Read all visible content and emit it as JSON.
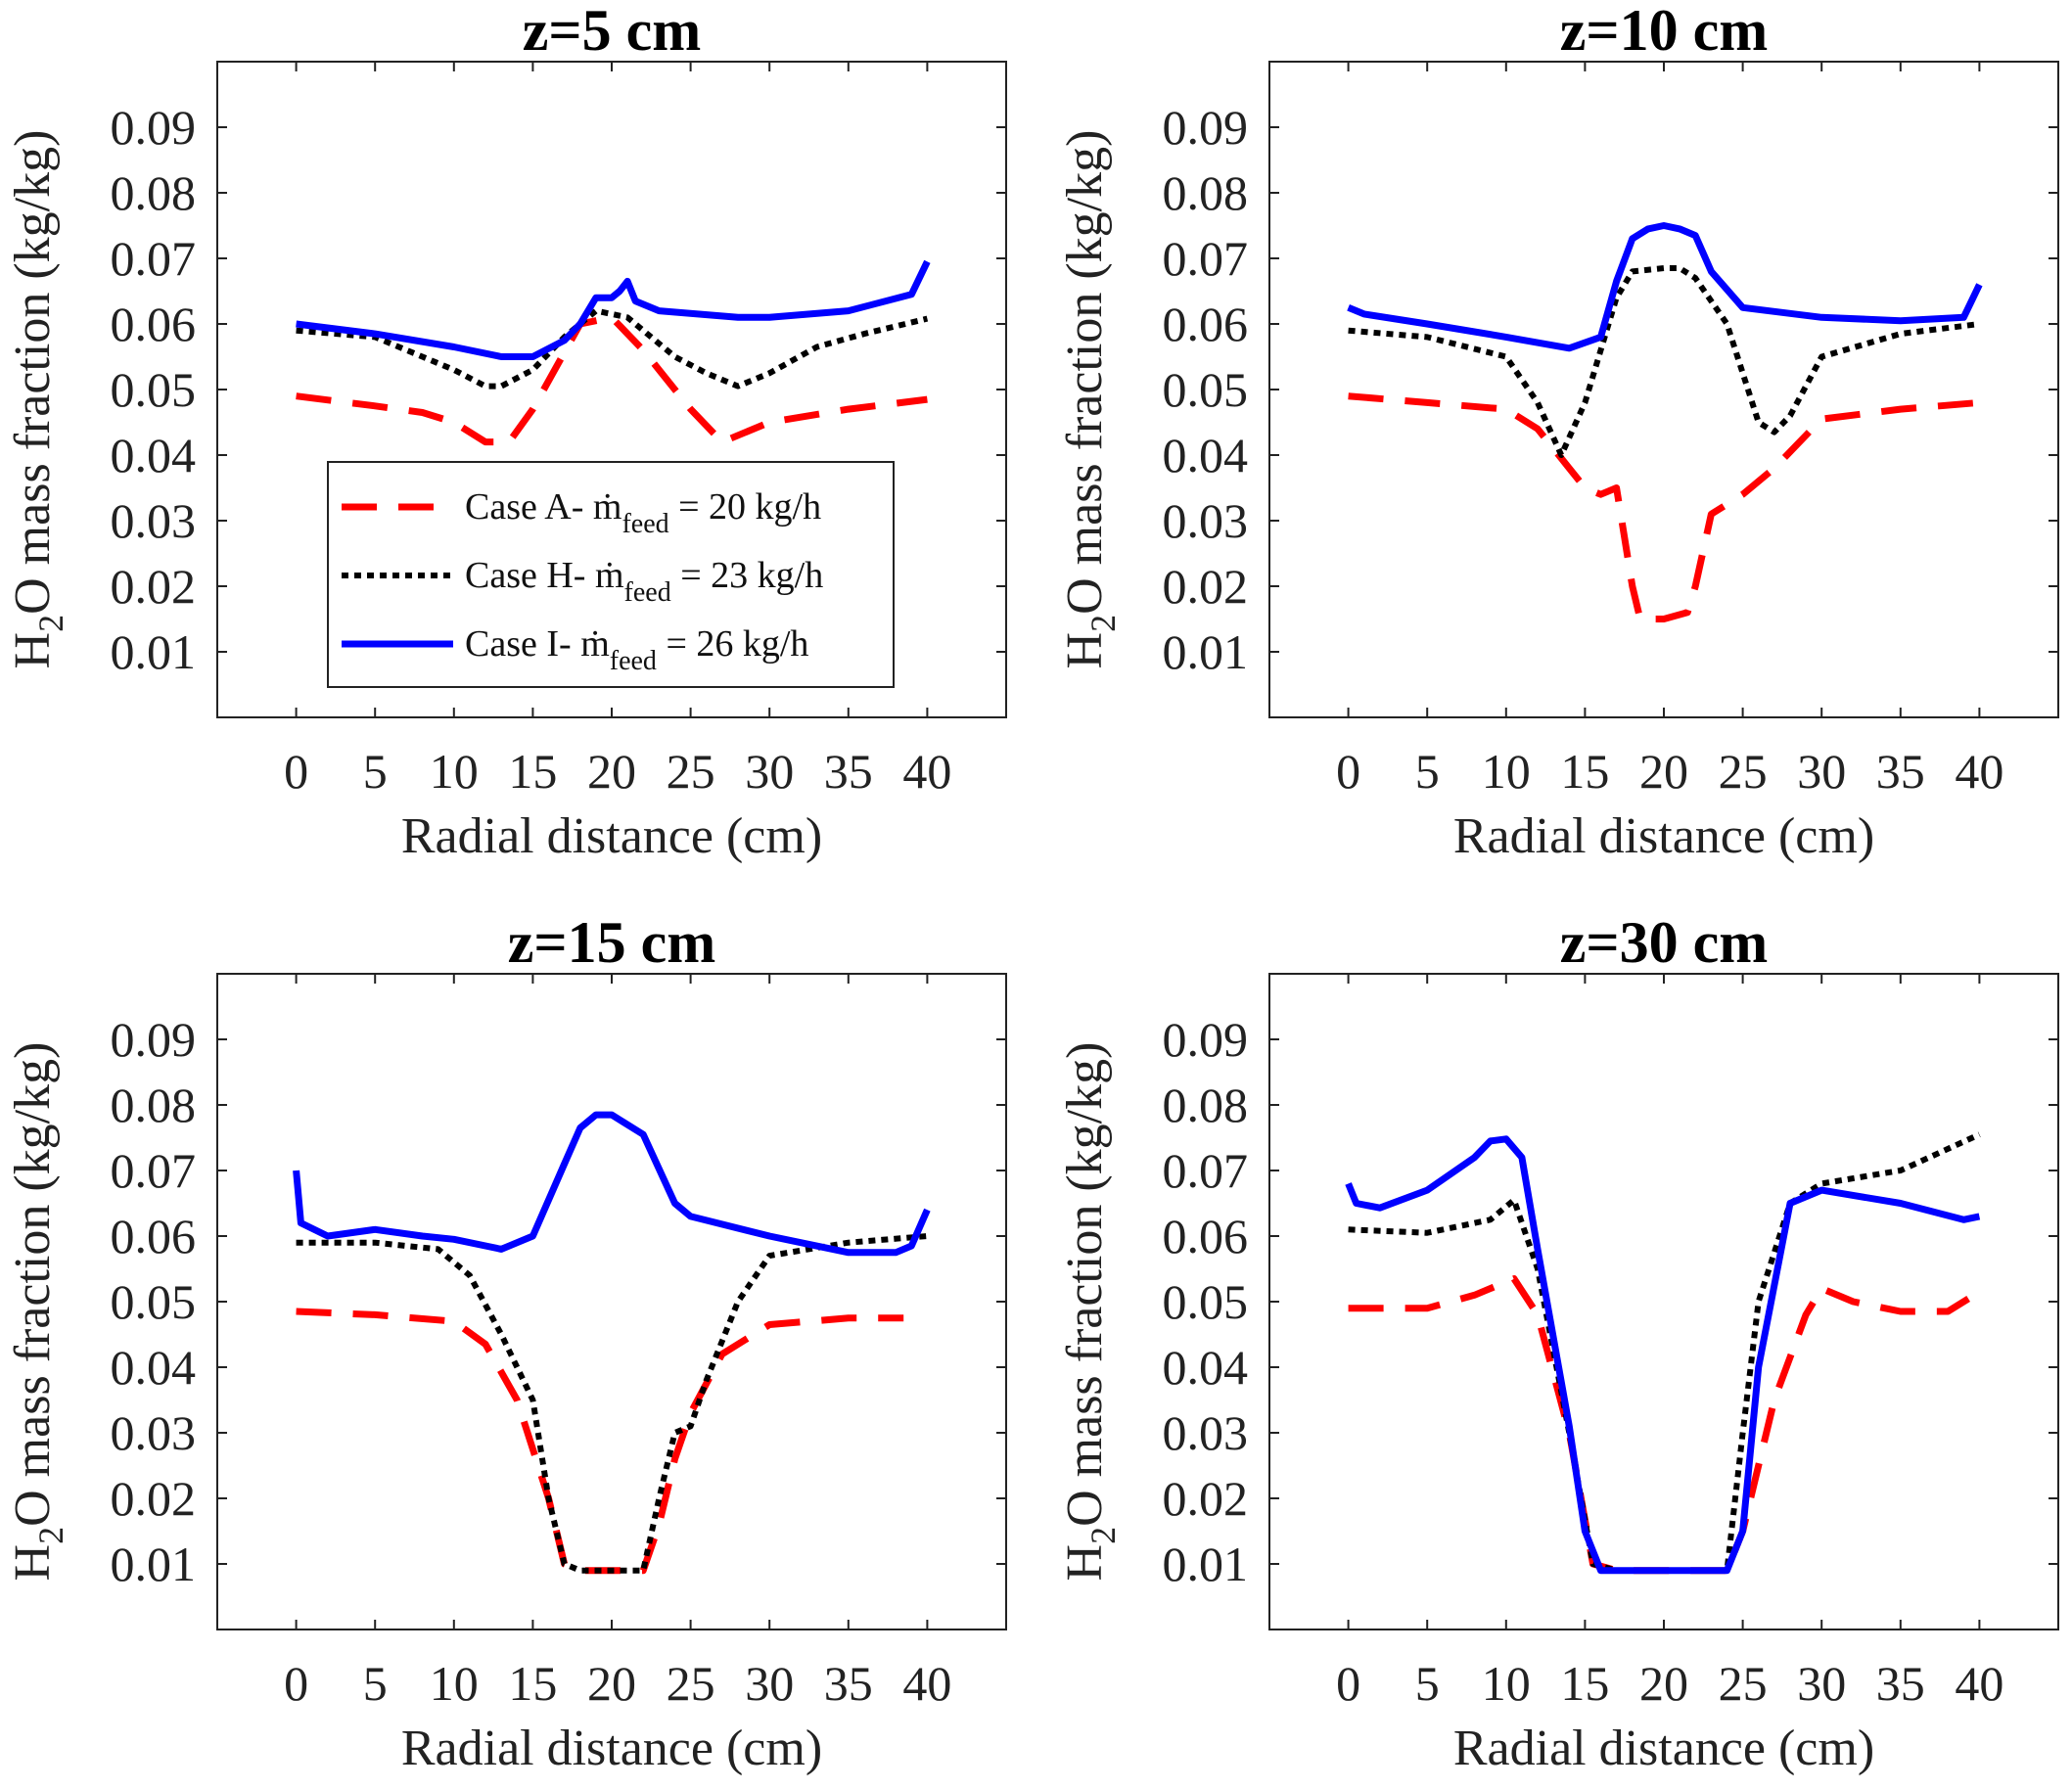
{
  "chart_data": [
    {
      "type": "line",
      "title": "z=5 cm",
      "xlabel": "Radial distance (cm)",
      "ylabel": {
        "pre": "H",
        "sub": "2",
        "post": "O mass fraction (kg/kg)"
      },
      "xlim": [
        -5,
        45
      ],
      "ylim": [
        0,
        0.1
      ],
      "xticks": [
        "0",
        "5",
        "10",
        "15",
        "20",
        "25",
        "30",
        "35",
        "40"
      ],
      "yticks": [
        "0.01",
        "0.02",
        "0.03",
        "0.04",
        "0.05",
        "0.06",
        "0.07",
        "0.08",
        "0.09"
      ],
      "show_legend": true,
      "series": [
        {
          "name": "Case A",
          "x": [
            0,
            5,
            8,
            10,
            12,
            13.5,
            15,
            18,
            20,
            22,
            25,
            27,
            30,
            35,
            40
          ],
          "y": [
            0.049,
            0.0475,
            0.0465,
            0.045,
            0.042,
            0.042,
            0.047,
            0.06,
            0.061,
            0.056,
            0.047,
            0.042,
            0.045,
            0.047,
            0.0485
          ]
        },
        {
          "name": "Case H",
          "x": [
            0,
            5,
            8,
            10,
            12,
            13,
            15,
            17,
            19,
            20,
            21,
            24,
            26,
            28,
            30,
            33,
            36,
            40
          ],
          "y": [
            0.059,
            0.058,
            0.055,
            0.053,
            0.0505,
            0.0505,
            0.053,
            0.058,
            0.062,
            0.0615,
            0.061,
            0.055,
            0.0525,
            0.0505,
            0.0525,
            0.0565,
            0.0585,
            0.0608
          ]
        },
        {
          "name": "Case I",
          "x": [
            0,
            5,
            10,
            13,
            15,
            17,
            18,
            19,
            20,
            20.5,
            21,
            21.5,
            23,
            28,
            30,
            35,
            39,
            40
          ],
          "y": [
            0.06,
            0.0585,
            0.0565,
            0.055,
            0.055,
            0.0575,
            0.06,
            0.064,
            0.064,
            0.065,
            0.0665,
            0.0635,
            0.062,
            0.061,
            0.061,
            0.062,
            0.0645,
            0.0695
          ]
        }
      ]
    },
    {
      "type": "line",
      "title": "z=10 cm",
      "xlabel": "Radial distance (cm)",
      "ylabel": {
        "pre": "H",
        "sub": "2",
        "post": "O mass fraction (kg/kg)"
      },
      "xlim": [
        -5,
        45
      ],
      "ylim": [
        0,
        0.1
      ],
      "xticks": [
        "0",
        "5",
        "10",
        "15",
        "20",
        "25",
        "30",
        "35",
        "40"
      ],
      "yticks": [
        "0.01",
        "0.02",
        "0.03",
        "0.04",
        "0.05",
        "0.06",
        "0.07",
        "0.08",
        "0.09"
      ],
      "show_legend": false,
      "series": [
        {
          "name": "Case A",
          "x": [
            0,
            5,
            10,
            12,
            14,
            15,
            16,
            17,
            18,
            18.5,
            20,
            21.5,
            22,
            23,
            25,
            27,
            30,
            35,
            40
          ],
          "y": [
            0.049,
            0.048,
            0.047,
            0.044,
            0.038,
            0.035,
            0.034,
            0.035,
            0.02,
            0.015,
            0.015,
            0.016,
            0.02,
            0.031,
            0.034,
            0.038,
            0.0455,
            0.047,
            0.048
          ]
        },
        {
          "name": "Case H",
          "x": [
            0,
            5,
            10,
            12,
            13.5,
            15,
            17,
            18,
            20,
            21,
            22,
            24,
            26,
            27,
            28,
            30,
            35,
            40
          ],
          "y": [
            0.059,
            0.058,
            0.055,
            0.048,
            0.04,
            0.048,
            0.064,
            0.068,
            0.0685,
            0.0685,
            0.067,
            0.06,
            0.045,
            0.0435,
            0.046,
            0.055,
            0.0585,
            0.06
          ]
        },
        {
          "name": "Case I",
          "x": [
            0,
            1,
            5,
            10,
            14,
            16,
            17,
            18,
            19,
            20,
            21,
            22,
            23,
            25,
            30,
            35,
            39,
            40
          ],
          "y": [
            0.0625,
            0.0615,
            0.06,
            0.058,
            0.0563,
            0.058,
            0.0665,
            0.073,
            0.0745,
            0.075,
            0.0745,
            0.0735,
            0.068,
            0.0625,
            0.061,
            0.0605,
            0.061,
            0.066
          ]
        }
      ]
    },
    {
      "type": "line",
      "title": "z=15 cm",
      "xlabel": "Radial distance (cm)",
      "ylabel": {
        "pre": "H",
        "sub": "2",
        "post": "O mass fraction (kg/kg)"
      },
      "xlim": [
        -5,
        45
      ],
      "ylim": [
        0,
        0.1
      ],
      "xticks": [
        "0",
        "5",
        "10",
        "15",
        "20",
        "25",
        "30",
        "35",
        "40"
      ],
      "yticks": [
        "0.01",
        "0.02",
        "0.03",
        "0.04",
        "0.05",
        "0.06",
        "0.07",
        "0.08",
        "0.09"
      ],
      "show_legend": false,
      "series": [
        {
          "name": "Case A",
          "x": [
            0,
            5,
            10,
            12,
            14,
            16,
            17,
            18,
            20,
            22,
            23,
            24,
            25,
            27,
            30,
            35,
            38.5
          ],
          "y": [
            0.0485,
            0.048,
            0.047,
            0.0435,
            0.035,
            0.02,
            0.01,
            0.009,
            0.009,
            0.009,
            0.016,
            0.026,
            0.033,
            0.042,
            0.0465,
            0.0475,
            0.0475
          ]
        },
        {
          "name": "Case H",
          "x": [
            0,
            5,
            9,
            11,
            13,
            15,
            16,
            17,
            18,
            20,
            22,
            23,
            24,
            25,
            26,
            28,
            30,
            35,
            40
          ],
          "y": [
            0.059,
            0.059,
            0.058,
            0.054,
            0.045,
            0.035,
            0.02,
            0.01,
            0.009,
            0.009,
            0.009,
            0.02,
            0.03,
            0.031,
            0.038,
            0.05,
            0.057,
            0.059,
            0.06
          ]
        },
        {
          "name": "Case I",
          "x": [
            0,
            0.3,
            2,
            5,
            8,
            10,
            13,
            15,
            17,
            18,
            19,
            20,
            22,
            24,
            25,
            30,
            35,
            38,
            39,
            40
          ],
          "y": [
            0.07,
            0.062,
            0.06,
            0.061,
            0.06,
            0.0595,
            0.058,
            0.06,
            0.071,
            0.0765,
            0.0785,
            0.0785,
            0.0755,
            0.065,
            0.063,
            0.06,
            0.0575,
            0.0575,
            0.0585,
            0.064
          ]
        }
      ]
    },
    {
      "type": "line",
      "title": "z=30 cm",
      "xlabel": "Radial distance (cm)",
      "ylabel": {
        "pre": "H",
        "sub": "2",
        "post": "O mass fraction (kg/kg)"
      },
      "xlim": [
        -5,
        45
      ],
      "ylim": [
        0,
        0.1
      ],
      "xticks": [
        "0",
        "5",
        "10",
        "15",
        "20",
        "25",
        "30",
        "35",
        "40"
      ],
      "yticks": [
        "0.01",
        "0.02",
        "0.03",
        "0.04",
        "0.05",
        "0.06",
        "0.07",
        "0.08",
        "0.09"
      ],
      "show_legend": false,
      "series": [
        {
          "name": "Case A",
          "x": [
            0,
            5,
            8,
            10,
            10.5,
            12,
            14,
            15.5,
            17,
            20,
            24,
            25,
            27,
            29,
            30,
            32,
            35,
            38,
            40
          ],
          "y": [
            0.049,
            0.049,
            0.051,
            0.053,
            0.0535,
            0.048,
            0.03,
            0.01,
            0.009,
            0.009,
            0.009,
            0.015,
            0.035,
            0.048,
            0.052,
            0.05,
            0.0485,
            0.0485,
            0.0515
          ]
        },
        {
          "name": "Case H",
          "x": [
            0,
            5,
            9,
            10.5,
            12,
            14,
            15.5,
            17,
            20,
            24,
            25,
            26,
            28,
            30,
            35,
            40
          ],
          "y": [
            0.061,
            0.0605,
            0.0625,
            0.0655,
            0.055,
            0.03,
            0.01,
            0.009,
            0.009,
            0.009,
            0.03,
            0.05,
            0.065,
            0.068,
            0.07,
            0.0755
          ]
        },
        {
          "name": "Case I",
          "x": [
            0,
            0.5,
            2,
            5,
            8,
            9,
            10,
            11,
            12,
            14,
            15,
            16,
            20,
            24,
            25,
            26,
            28,
            30,
            35,
            39,
            40
          ],
          "y": [
            0.068,
            0.065,
            0.0643,
            0.067,
            0.072,
            0.0745,
            0.0748,
            0.072,
            0.058,
            0.031,
            0.015,
            0.009,
            0.009,
            0.009,
            0.015,
            0.04,
            0.065,
            0.067,
            0.065,
            0.0625,
            0.063
          ]
        }
      ]
    }
  ],
  "legend": {
    "items": [
      {
        "series": "Case A",
        "label": "Case A- ",
        "mdot": "ṁ",
        "sub": "feed",
        "value": " = 20 kg/h"
      },
      {
        "series": "Case H",
        "label": "Case H- ",
        "mdot": "ṁ",
        "sub": "feed",
        "value": " = 23 kg/h"
      },
      {
        "series": "Case I",
        "label": "Case I- ",
        "mdot": "ṁ",
        "sub": "feed",
        "value": " = 26 kg/h"
      }
    ]
  },
  "styles": {
    "Case A": {
      "color": "#ff0000",
      "dash": "36 22"
    },
    "Case H": {
      "color": "#000000",
      "dash": "7 6"
    },
    "Case I": {
      "color": "#0000ff",
      "dash": ""
    }
  }
}
